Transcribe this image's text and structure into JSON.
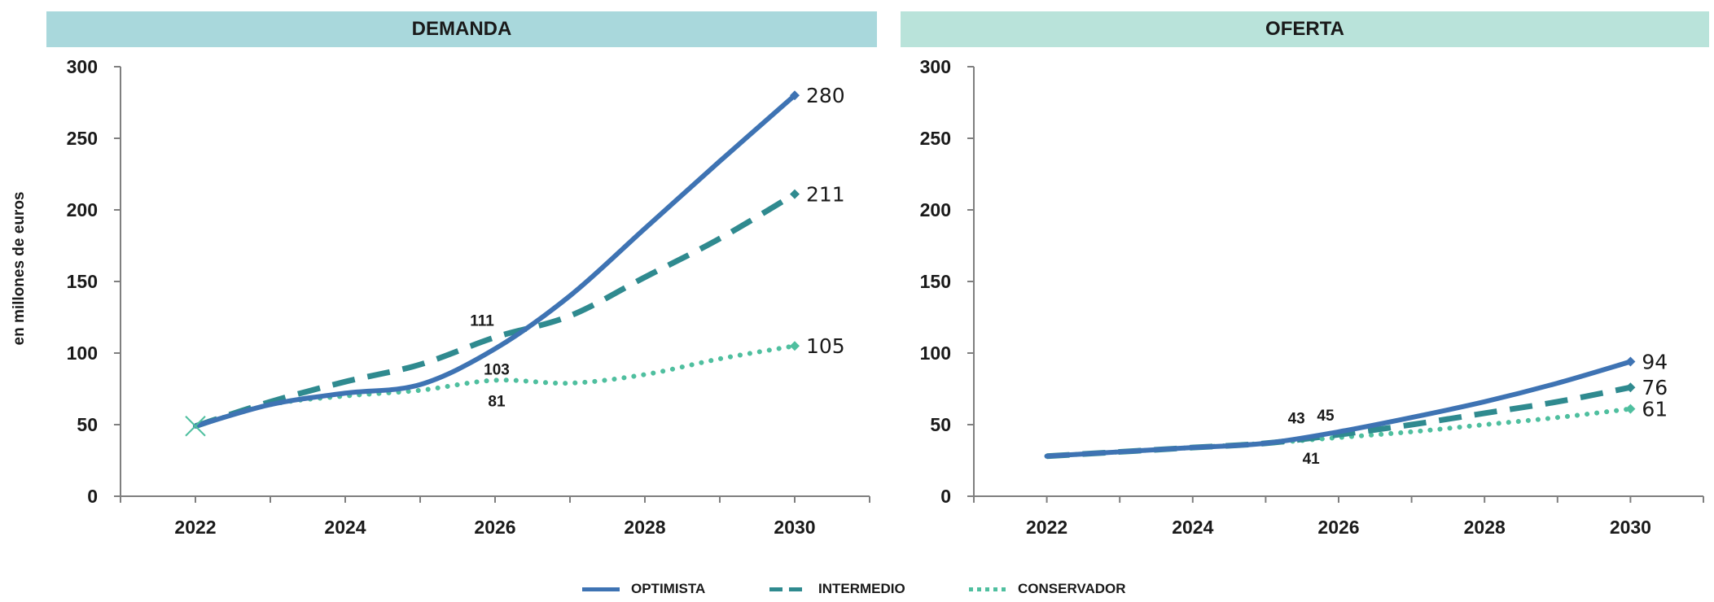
{
  "panels": {
    "demanda_title": "DEMANDA",
    "oferta_title": "OFERTA"
  },
  "ylabel": "en millones de euros",
  "legend": {
    "optimista": "OPTIMISTA",
    "intermedio": "INTERMEDIO",
    "conservador": "CONSERVADOR"
  },
  "colors": {
    "optimista": "#3e73b3",
    "intermedio": "#2f8a8f",
    "conservador": "#4fbf9f"
  },
  "chart_data": [
    {
      "type": "line",
      "title": "DEMANDA",
      "ylabel": "en millones de euros",
      "x_ticks": [
        "2022",
        "2024",
        "2026",
        "2028",
        "2030"
      ],
      "y_ticks": [
        "0",
        "50",
        "100",
        "150",
        "200",
        "250",
        "300"
      ],
      "ylim": [
        0,
        300
      ],
      "xlim": [
        2021,
        2031
      ],
      "series": [
        {
          "name": "OPTIMISTA",
          "key": "optimista",
          "style": "solid",
          "x": [
            2022,
            2023,
            2024,
            2025,
            2026,
            2027,
            2028,
            2029,
            2030
          ],
          "y": [
            49,
            64,
            72,
            78,
            103,
            140,
            187,
            234,
            280
          ]
        },
        {
          "name": "INTERMEDIO",
          "key": "intermedio",
          "style": "dashed",
          "x": [
            2022,
            2023,
            2024,
            2025,
            2026,
            2027,
            2028,
            2029,
            2030
          ],
          "y": [
            49,
            66,
            80,
            92,
            111,
            126,
            153,
            180,
            211
          ]
        },
        {
          "name": "CONSERVADOR",
          "key": "conservador",
          "style": "dotted",
          "x": [
            2022,
            2023,
            2024,
            2025,
            2026,
            2027,
            2028,
            2029,
            2030
          ],
          "y": [
            49,
            64,
            70,
            74,
            81,
            79,
            85,
            96,
            105
          ]
        }
      ],
      "labels": [
        {
          "text": "280",
          "series": "optimista",
          "x": 2030,
          "y": 280,
          "kind": "end"
        },
        {
          "text": "211",
          "series": "intermedio",
          "x": 2030,
          "y": 211,
          "kind": "end"
        },
        {
          "text": "105",
          "series": "conservador",
          "x": 2030,
          "y": 105,
          "kind": "end"
        },
        {
          "text": "111",
          "series": "intermedio",
          "x": 2026,
          "y": 111,
          "kind": "above"
        },
        {
          "text": "103",
          "series": "optimista",
          "x": 2026,
          "y": 103,
          "kind": "below"
        },
        {
          "text": "81",
          "series": "conservador",
          "x": 2026,
          "y": 81,
          "kind": "below"
        }
      ]
    },
    {
      "type": "line",
      "title": "OFERTA",
      "x_ticks": [
        "2022",
        "2024",
        "2026",
        "2028",
        "2030"
      ],
      "y_ticks": [
        "0",
        "50",
        "100",
        "150",
        "200",
        "250",
        "300"
      ],
      "ylim": [
        0,
        300
      ],
      "xlim": [
        2021,
        2031
      ],
      "series": [
        {
          "name": "OPTIMISTA",
          "key": "optimista",
          "style": "solid",
          "x": [
            2022,
            2023,
            2024,
            2025,
            2026,
            2027,
            2028,
            2029,
            2030
          ],
          "y": [
            28,
            31,
            34,
            37,
            45,
            55,
            66,
            79,
            94
          ]
        },
        {
          "name": "INTERMEDIO",
          "key": "intermedio",
          "style": "dashed",
          "x": [
            2022,
            2023,
            2024,
            2025,
            2026,
            2027,
            2028,
            2029,
            2030
          ],
          "y": [
            28,
            31,
            34,
            37,
            43,
            50,
            58,
            66,
            76
          ]
        },
        {
          "name": "CONSERVADOR",
          "key": "conservador",
          "style": "dotted",
          "x": [
            2022,
            2023,
            2024,
            2025,
            2026,
            2027,
            2028,
            2029,
            2030
          ],
          "y": [
            28,
            31,
            34,
            37,
            41,
            45,
            50,
            55,
            61
          ]
        }
      ],
      "labels": [
        {
          "text": "94",
          "series": "optimista",
          "x": 2030,
          "y": 94,
          "kind": "end"
        },
        {
          "text": "76",
          "series": "intermedio",
          "x": 2030,
          "y": 76,
          "kind": "end"
        },
        {
          "text": "61",
          "series": "conservador",
          "x": 2030,
          "y": 61,
          "kind": "end"
        },
        {
          "text": "43",
          "series": "intermedio",
          "x": 2025.6,
          "y": 43,
          "kind": "above"
        },
        {
          "text": "45",
          "series": "optimista",
          "x": 2026,
          "y": 45,
          "kind": "above"
        },
        {
          "text": "41",
          "series": "conservador",
          "x": 2025.6,
          "y": 41,
          "kind": "below"
        }
      ]
    }
  ]
}
